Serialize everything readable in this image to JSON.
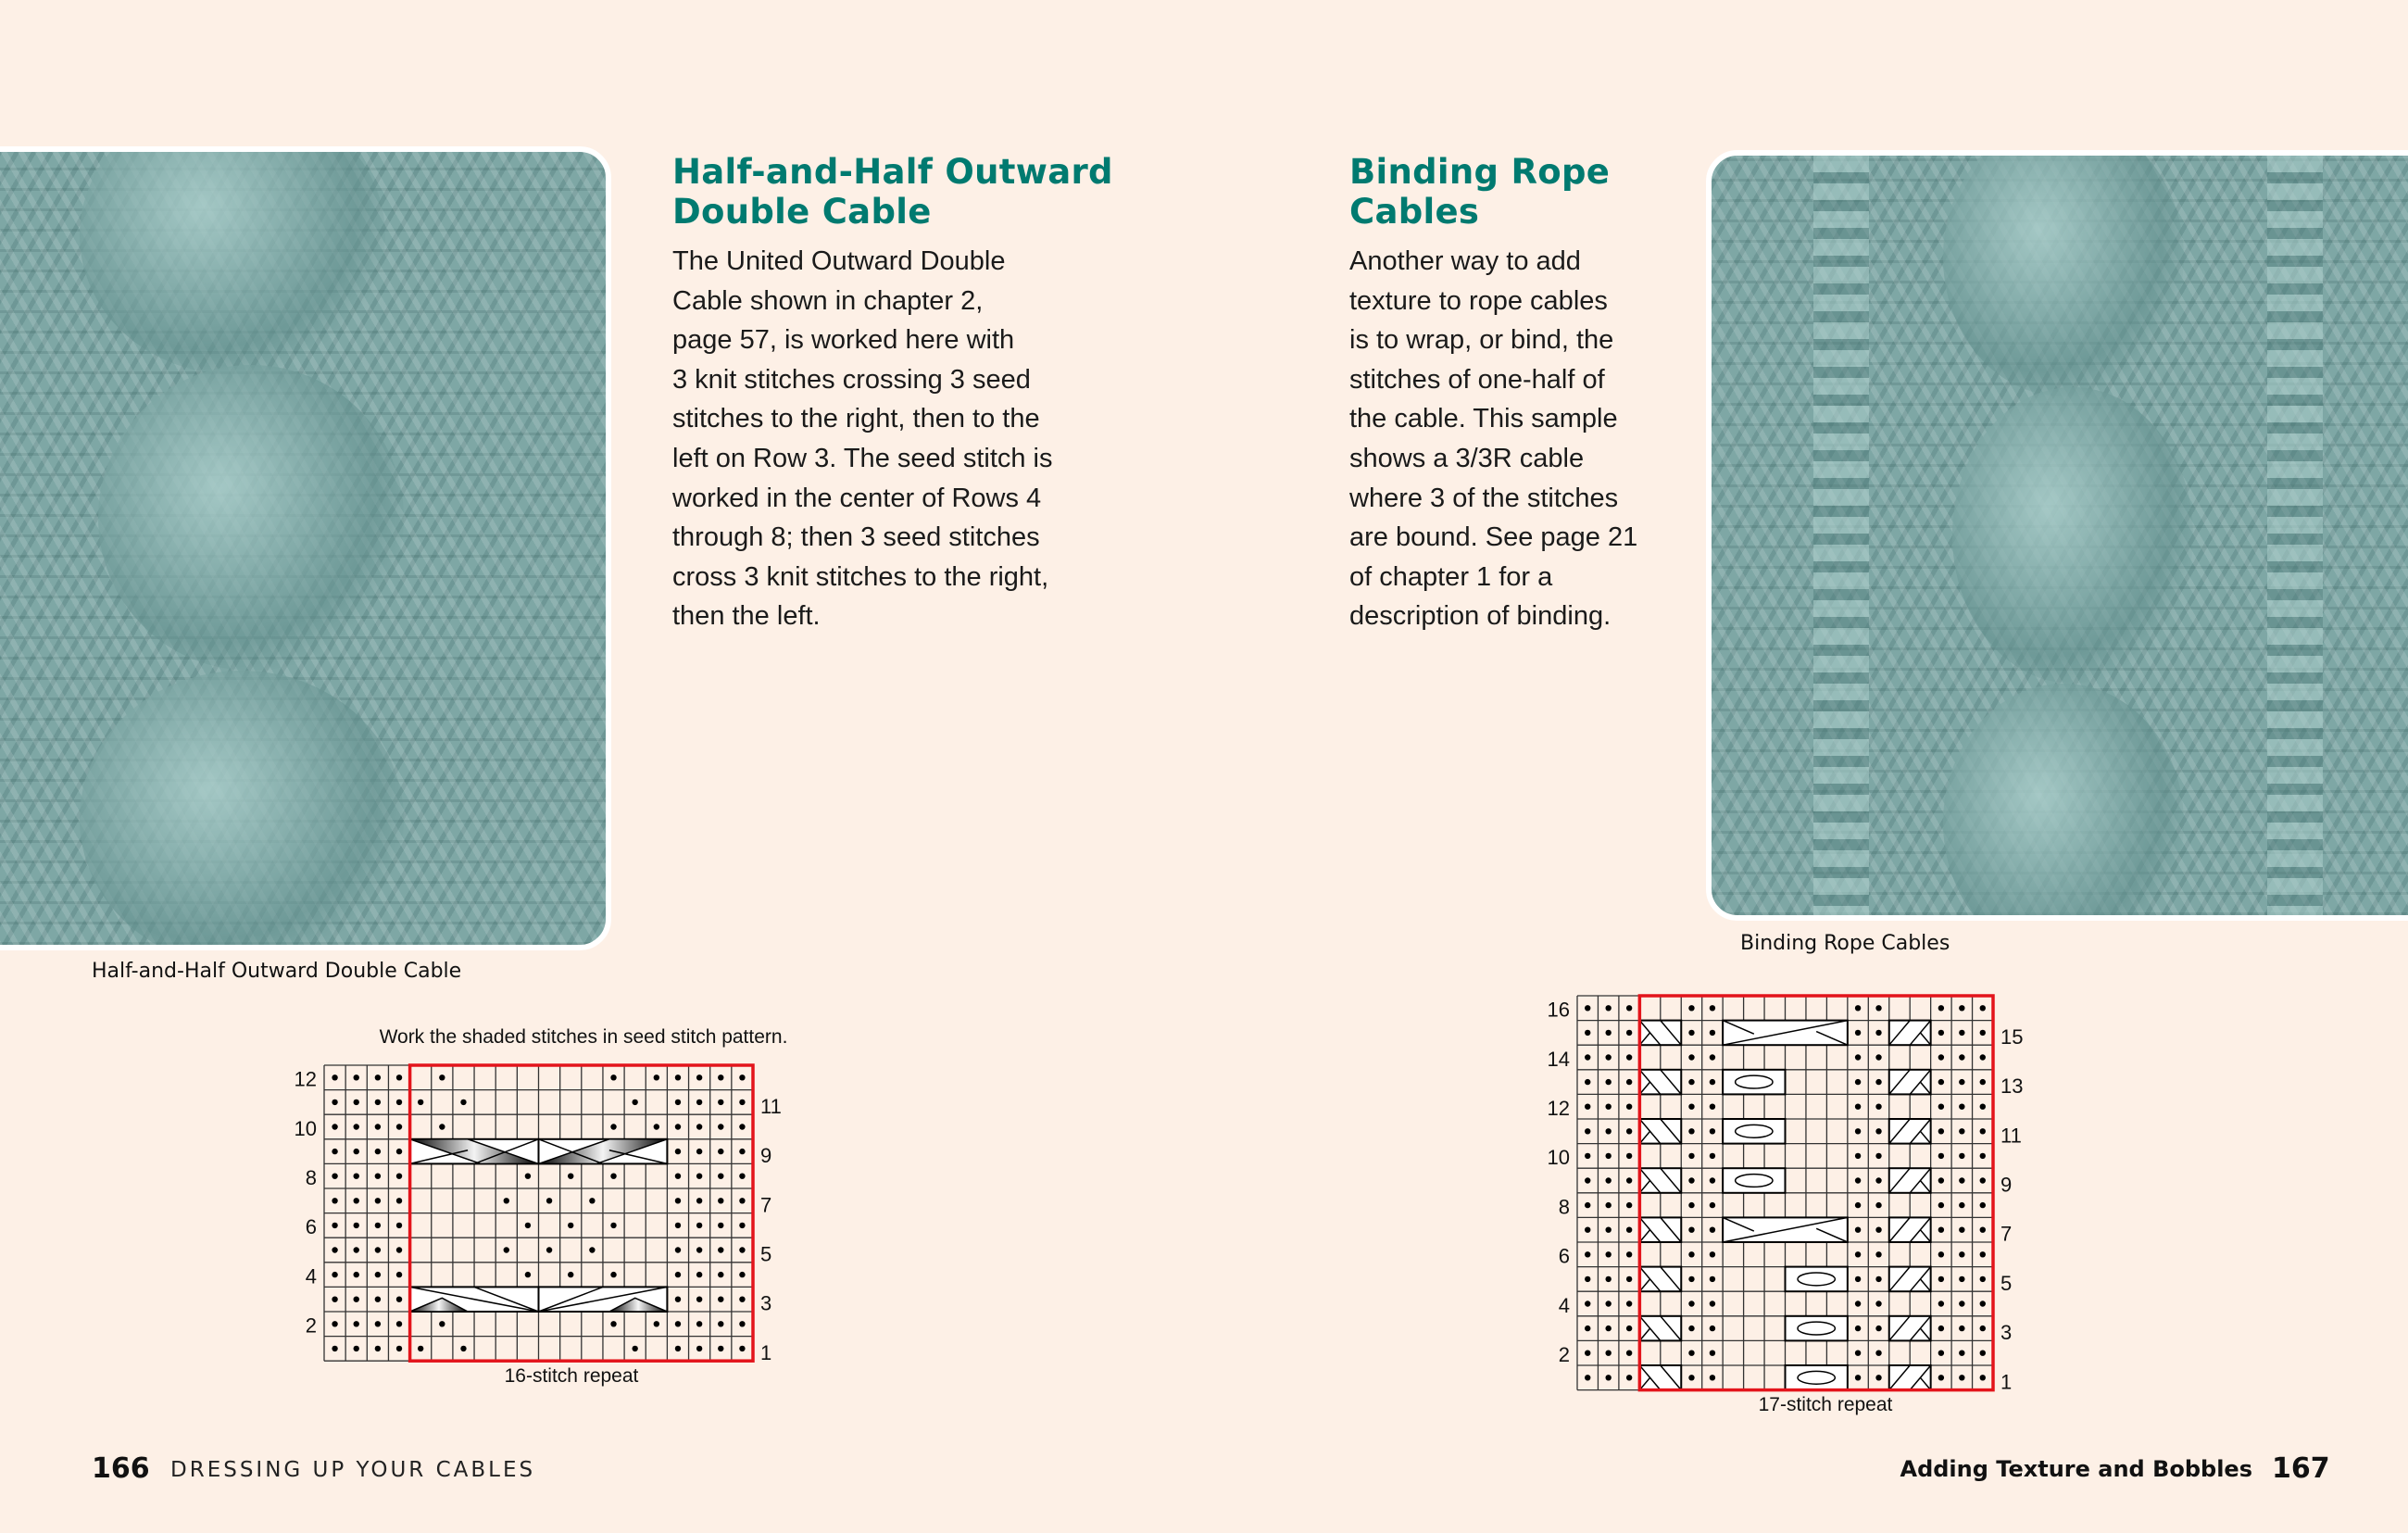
{
  "colors": {
    "background": "#fdf0e6",
    "heading": "#007a70",
    "repeat_outline": "#e3141b",
    "yarn": "#7ea7a5"
  },
  "left_page": {
    "heading_lines": [
      "Half-and-Half Outward",
      "Double Cable"
    ],
    "body_lines": [
      "The United Outward Double",
      "Cable shown in chapter 2,",
      "page 57, is worked here with",
      "3 knit stitches crossing 3 seed",
      "stitches to the right, then to the",
      "left on Row 3. The seed stitch is",
      "worked in the center of Rows 4",
      "through 8; then 3 seed stitches",
      "cross 3 knit stitches to the right,",
      "then the left."
    ],
    "photo_caption": "Half-and-Half Outward Double Cable",
    "chart": {
      "note": "Work the shaded stitches in seed stitch pattern.",
      "repeat_label": "16-stitch repeat",
      "columns": 20,
      "rows": 12,
      "repeat_cols": [
        4,
        19
      ],
      "row_numbers_left": [
        "12",
        "10",
        "8",
        "6",
        "4",
        "2"
      ],
      "row_numbers_right": [
        "11",
        "9",
        "7",
        "5",
        "3",
        "1"
      ],
      "row_dots": {
        "12": [
          0,
          1,
          2,
          3,
          5,
          13,
          15,
          16,
          17,
          18,
          19
        ],
        "11": [
          0,
          1,
          2,
          3,
          4,
          6,
          14,
          16,
          17,
          18,
          19
        ],
        "10": [
          0,
          1,
          2,
          3,
          5,
          13,
          15,
          16,
          17,
          18,
          19
        ],
        "9": [
          0,
          1,
          2,
          3,
          16,
          17,
          18,
          19
        ],
        "8": [
          0,
          1,
          2,
          3,
          9,
          11,
          13,
          16,
          17,
          18,
          19
        ],
        "7": [
          0,
          1,
          2,
          3,
          8,
          10,
          12,
          16,
          17,
          18,
          19
        ],
        "6": [
          0,
          1,
          2,
          3,
          9,
          11,
          13,
          16,
          17,
          18,
          19
        ],
        "5": [
          0,
          1,
          2,
          3,
          8,
          10,
          12,
          16,
          17,
          18,
          19
        ],
        "4": [
          0,
          1,
          2,
          3,
          9,
          11,
          13,
          16,
          17,
          18,
          19
        ],
        "3": [
          0,
          1,
          2,
          3,
          16,
          17,
          18,
          19
        ],
        "2": [
          0,
          1,
          2,
          3,
          5,
          13,
          15,
          16,
          17,
          18,
          19
        ],
        "1": [
          0,
          1,
          2,
          3,
          4,
          6,
          14,
          16,
          17,
          18,
          19
        ]
      },
      "cables": [
        {
          "row": 9,
          "from": 4,
          "to": 15,
          "type": "outward-double-shaded-top"
        },
        {
          "row": 3,
          "from": 4,
          "to": 15,
          "type": "outward-double-shaded-bottom"
        }
      ]
    },
    "folio": "166",
    "running_head": "DRESSING UP YOUR CABLES"
  },
  "right_page": {
    "heading_lines": [
      "Binding Rope",
      "Cables"
    ],
    "body_lines": [
      "Another way to add",
      "texture to rope cables",
      "is to wrap, or bind, the",
      "stitches of one-half of",
      "the cable. This sample",
      "shows a 3/3R cable",
      "where 3 of the stitches",
      "are bound. See page 21",
      "of chapter 1 for a",
      "description of binding."
    ],
    "photo_caption": "Binding Rope Cables",
    "chart": {
      "repeat_label": "17-stitch repeat",
      "columns": 20,
      "rows": 16,
      "repeat_cols": [
        3,
        19
      ],
      "row_numbers_left": [
        "16",
        "14",
        "12",
        "10",
        "8",
        "6",
        "4",
        "2"
      ],
      "row_numbers_right": [
        "15",
        "13",
        "11",
        "9",
        "7",
        "5",
        "3",
        "1"
      ],
      "dots_every_row": [
        0,
        1,
        2,
        5,
        6,
        13,
        14,
        17,
        18,
        19
      ],
      "twist_rows": [
        15,
        13,
        11,
        9,
        7,
        5,
        3,
        1
      ],
      "twists": [
        {
          "from": 3,
          "to": 4,
          "dir": "right"
        },
        {
          "from": 15,
          "to": 16,
          "dir": "left"
        }
      ],
      "long_cables": [
        {
          "row": 15,
          "from": 7,
          "to": 12
        },
        {
          "row": 7,
          "from": 7,
          "to": 12
        }
      ],
      "bindings": [
        {
          "row": 13,
          "from": 7,
          "to": 9
        },
        {
          "row": 11,
          "from": 7,
          "to": 9
        },
        {
          "row": 9,
          "from": 7,
          "to": 9
        },
        {
          "row": 5,
          "from": 10,
          "to": 12
        },
        {
          "row": 3,
          "from": 10,
          "to": 12
        },
        {
          "row": 1,
          "from": 10,
          "to": 12
        }
      ]
    },
    "folio": "167",
    "running_head": "Adding Texture and Bobbles"
  }
}
